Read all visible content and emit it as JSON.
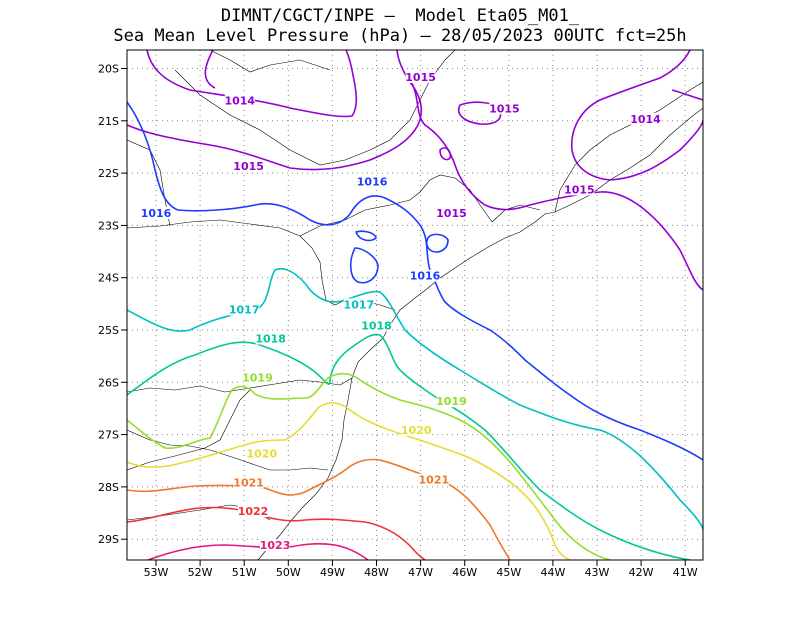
{
  "title_line1": "DIMNT/CGCT/INPE –  Model Eta05_M01_",
  "title_line2": "Sea Mean Level Pressure (hPa) – 28/05/2023 00UTC fct=25h",
  "axes": {
    "x_ticks": [
      "53W",
      "52W",
      "51W",
      "50W",
      "49W",
      "48W",
      "47W",
      "46W",
      "45W",
      "44W",
      "43W",
      "42W",
      "41W"
    ],
    "y_ticks": [
      "20S",
      "21S",
      "22S",
      "23S",
      "24S",
      "25S",
      "26S",
      "27S",
      "28S",
      "29S"
    ]
  },
  "colors": {
    "1014": "#9400d3",
    "1015": "#9400d3",
    "1016": "#1e3cff",
    "1017": "#00c0c0",
    "1018": "#00c896",
    "1019": "#96dc28",
    "1020": "#e6dc32",
    "1021": "#f07828",
    "1022": "#f03232",
    "1023": "#e6147a"
  },
  "contour_labels": [
    {
      "text": "1014",
      "lon": -51.1,
      "lat": -20.65,
      "level": "1014"
    },
    {
      "text": "1014",
      "lon": -41.9,
      "lat": -21.0,
      "level": "1014"
    },
    {
      "text": "1015",
      "lon": -47.0,
      "lat": -20.2,
      "level": "1015"
    },
    {
      "text": "1015",
      "lon": -50.9,
      "lat": -21.9,
      "level": "1015"
    },
    {
      "text": "1015",
      "lon": -45.1,
      "lat": -20.8,
      "level": "1015"
    },
    {
      "text": "1015",
      "lon": -46.3,
      "lat": -22.8,
      "level": "1015"
    },
    {
      "text": "1015",
      "lon": -43.4,
      "lat": -22.35,
      "level": "1015"
    },
    {
      "text": "1016",
      "lon": -53.0,
      "lat": -22.8,
      "level": "1016"
    },
    {
      "text": "1016",
      "lon": -48.1,
      "lat": -22.2,
      "level": "1016"
    },
    {
      "text": "1016",
      "lon": -46.9,
      "lat": -24.0,
      "level": "1016"
    },
    {
      "text": "1017",
      "lon": -51.0,
      "lat": -24.65,
      "level": "1017"
    },
    {
      "text": "1017",
      "lon": -48.4,
      "lat": -24.55,
      "level": "1017"
    },
    {
      "text": "1018",
      "lon": -50.4,
      "lat": -25.2,
      "level": "1018"
    },
    {
      "text": "1018",
      "lon": -48.0,
      "lat": -24.95,
      "level": "1018"
    },
    {
      "text": "1019",
      "lon": -50.7,
      "lat": -25.95,
      "level": "1019"
    },
    {
      "text": "1019",
      "lon": -46.3,
      "lat": -26.4,
      "level": "1019"
    },
    {
      "text": "1020",
      "lon": -47.1,
      "lat": -26.95,
      "level": "1020"
    },
    {
      "text": "1020",
      "lon": -50.6,
      "lat": -27.4,
      "level": "1020"
    },
    {
      "text": "1021",
      "lon": -46.7,
      "lat": -27.9,
      "level": "1021"
    },
    {
      "text": "1021",
      "lon": -50.9,
      "lat": -27.95,
      "level": "1021"
    },
    {
      "text": "1022",
      "lon": -50.8,
      "lat": -28.5,
      "level": "1022"
    },
    {
      "text": "1023",
      "lon": -50.3,
      "lat": -29.15,
      "level": "1023"
    }
  ]
}
